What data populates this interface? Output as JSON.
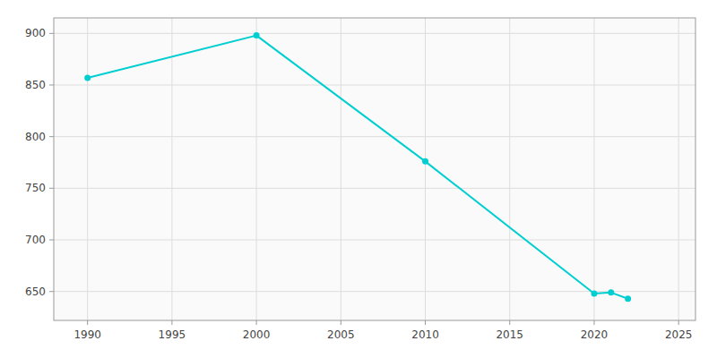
{
  "chart_data": {
    "type": "line",
    "x": [
      1990,
      2000,
      2010,
      2020,
      2021,
      2022
    ],
    "values": [
      857,
      898,
      776,
      648,
      649,
      643
    ],
    "color": "#00CED1",
    "marker": "circle",
    "xlim": [
      1988,
      2026
    ],
    "ylim": [
      622,
      915
    ],
    "xticks": [
      1990,
      1995,
      2000,
      2005,
      2010,
      2015,
      2020,
      2025
    ],
    "yticks": [
      650,
      700,
      750,
      800,
      850,
      900
    ],
    "grid": true
  }
}
